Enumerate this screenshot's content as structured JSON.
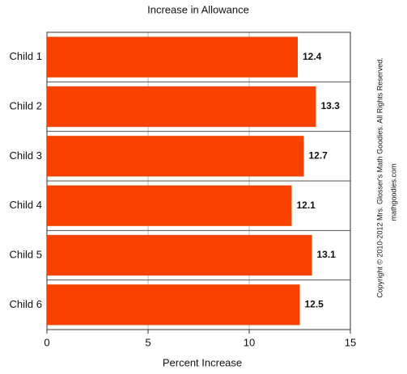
{
  "chart_data": {
    "type": "bar",
    "orientation": "horizontal",
    "title": "Increase in Allowance",
    "x_label": "Percent Increase",
    "categories": [
      "Child 1",
      "Child 2",
      "Child 3",
      "Child 4",
      "Child 5",
      "Child 6"
    ],
    "values": [
      12.4,
      13.3,
      12.7,
      12.1,
      13.1,
      12.5
    ],
    "color": "#fa4200",
    "xlim": [
      0,
      15
    ],
    "xticks": [
      0,
      5,
      10,
      15
    ],
    "grid": true,
    "copyright": "Copyright © 2010-2012 Mrs. Glosser's Math Goodies. All Rights Reserved.",
    "website": "mathgoodies.com"
  }
}
